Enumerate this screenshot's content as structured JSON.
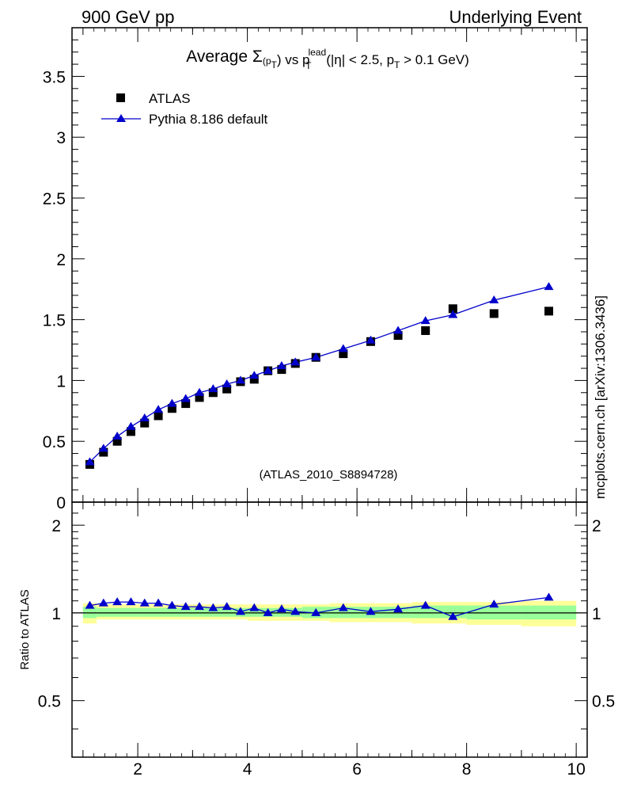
{
  "header": {
    "left": "900 GeV pp",
    "right": "Underlying Event"
  },
  "side_label": "mcplots.cern.ch [arXiv:1306.3436]",
  "watermark": "(ATLAS_2010_S8894728)",
  "title": {
    "prefix": "Average ",
    "sigma": "Σ",
    "pt_p": "(p",
    "pt_T": "T",
    "pt_close": ")",
    "vs": " vs p",
    "lead": "lead",
    "T2": "T",
    "cut1": " (|η| < 2.5, p",
    "T3": "T",
    "cut2": " > 0.1 GeV)"
  },
  "legend": {
    "data_label": "ATLAS",
    "mc_label": "Pythia 8.186 default"
  },
  "ratio_ylabel": "Ratio to ATLAS",
  "colors": {
    "data": "#000000",
    "mc": "#0000cc",
    "band_inner": "#99ff99",
    "band_outer": "#ffff99",
    "watermark": "#999999",
    "side_label": "#666666"
  },
  "chart_data": [
    {
      "type": "scatter",
      "panel": "main",
      "title": "Average Σ(pT) vs pT lead (|η| < 2.5, pT > 0.1 GeV)",
      "xlim": [
        0.8,
        10.2
      ],
      "ylim": [
        0,
        3.9
      ],
      "y_ticks": [
        0,
        0.5,
        1,
        1.5,
        2,
        2.5,
        3,
        3.5
      ],
      "y_tick_labels": [
        "0",
        "0.5",
        "1",
        "1.5",
        "2",
        "2.5",
        "3",
        "3.5"
      ],
      "x": [
        1.125,
        1.375,
        1.625,
        1.875,
        2.125,
        2.375,
        2.625,
        2.875,
        3.125,
        3.375,
        3.625,
        3.875,
        4.125,
        4.375,
        4.625,
        4.875,
        5.25,
        5.75,
        6.25,
        6.75,
        7.25,
        7.75,
        8.5,
        9.5
      ],
      "series": [
        {
          "name": "ATLAS",
          "marker": "square",
          "values": [
            0.31,
            0.41,
            0.5,
            0.58,
            0.65,
            0.71,
            0.77,
            0.81,
            0.86,
            0.9,
            0.93,
            0.99,
            1.01,
            1.08,
            1.09,
            1.14,
            1.19,
            1.22,
            1.32,
            1.37,
            1.41,
            1.59,
            1.55,
            1.57
          ]
        },
        {
          "name": "Pythia 8.186 default",
          "marker": "triangle",
          "values": [
            0.33,
            0.44,
            0.54,
            0.62,
            0.69,
            0.76,
            0.81,
            0.85,
            0.9,
            0.93,
            0.97,
            1.0,
            1.04,
            1.08,
            1.12,
            1.15,
            1.19,
            1.26,
            1.33,
            1.41,
            1.49,
            1.54,
            1.66,
            1.77
          ]
        }
      ]
    },
    {
      "type": "line",
      "panel": "ratio",
      "ylabel": "Ratio to ATLAS",
      "xlim": [
        0.8,
        10.2
      ],
      "ylim": [
        0.32,
        2.4
      ],
      "y_ticks": [
        0.5,
        1,
        2
      ],
      "y_tick_labels": [
        "0.5",
        "1",
        "2"
      ],
      "x_ticks": [
        2,
        4,
        6,
        8,
        10
      ],
      "x_tick_labels": [
        "2",
        "4",
        "6",
        "8",
        "10"
      ],
      "x": [
        1.125,
        1.375,
        1.625,
        1.875,
        2.125,
        2.375,
        2.625,
        2.875,
        3.125,
        3.375,
        3.625,
        3.875,
        4.125,
        4.375,
        4.625,
        4.875,
        5.25,
        5.75,
        6.25,
        6.75,
        7.25,
        7.75,
        8.5,
        9.5
      ],
      "series": [
        {
          "name": "Pythia 8.186 default",
          "values": [
            1.06,
            1.08,
            1.09,
            1.09,
            1.08,
            1.08,
            1.06,
            1.05,
            1.05,
            1.04,
            1.05,
            1.01,
            1.04,
            1.0,
            1.03,
            1.01,
            1.0,
            1.04,
            1.01,
            1.03,
            1.06,
            0.97,
            1.07,
            1.13
          ]
        }
      ],
      "band_edges": [
        1.0,
        1.25,
        2.0,
        3.0,
        4.0,
        5.0,
        5.5,
        6.0,
        7.0,
        8.0,
        9.0,
        10.0
      ],
      "band_outer": [
        [
          0.92,
          1.08
        ],
        [
          0.95,
          1.07
        ],
        [
          0.95,
          1.07
        ],
        [
          0.95,
          1.07
        ],
        [
          0.94,
          1.07
        ],
        [
          0.94,
          1.07
        ],
        [
          0.93,
          1.08
        ],
        [
          0.93,
          1.08
        ],
        [
          0.92,
          1.09
        ],
        [
          0.91,
          1.09
        ],
        [
          0.9,
          1.1
        ]
      ],
      "band_inner": [
        [
          0.96,
          1.05
        ],
        [
          0.97,
          1.04
        ],
        [
          0.97,
          1.04
        ],
        [
          0.97,
          1.04
        ],
        [
          0.97,
          1.04
        ],
        [
          0.96,
          1.05
        ],
        [
          0.96,
          1.05
        ],
        [
          0.96,
          1.05
        ],
        [
          0.96,
          1.06
        ],
        [
          0.95,
          1.06
        ],
        [
          0.95,
          1.06
        ]
      ]
    }
  ]
}
